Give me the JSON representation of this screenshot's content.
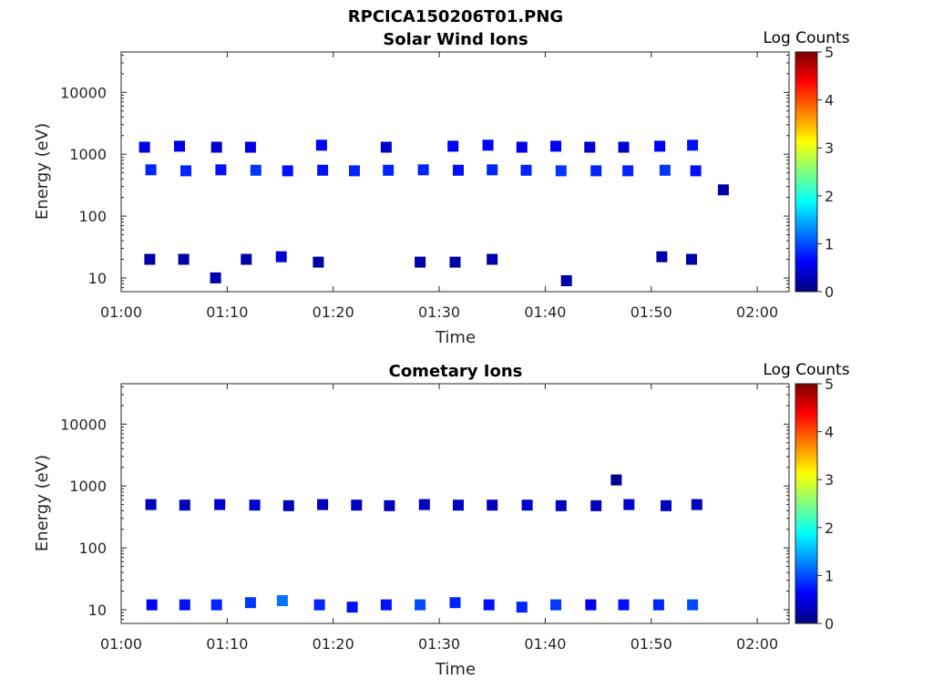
{
  "figure_title": "RPCICA150206T01.PNG",
  "chart_data": [
    {
      "type": "heatmap",
      "title": "Solar Wind Ions",
      "xlabel": "Time",
      "ylabel": "Energy (eV)",
      "x_ticks": [
        "01:00",
        "01:10",
        "01:20",
        "01:30",
        "01:40",
        "01:50",
        "02:00"
      ],
      "xlim_minutes": [
        0,
        63
      ],
      "y_scale": "log",
      "ylim": [
        6,
        45000
      ],
      "y_ticks": [
        "10",
        "100",
        "1000",
        "10000"
      ],
      "colorbar": {
        "label": "Log Counts",
        "ticks": [
          "0",
          "1",
          "2",
          "3",
          "4",
          "5"
        ],
        "range": [
          0,
          5
        ]
      },
      "colormap": "jet",
      "cells": [
        {
          "t": 2.2,
          "e": 1300,
          "v": 0.5
        },
        {
          "t": 5.5,
          "e": 1350,
          "v": 0.5
        },
        {
          "t": 9.0,
          "e": 1300,
          "v": 0.4
        },
        {
          "t": 12.2,
          "e": 1300,
          "v": 0.5
        },
        {
          "t": 18.9,
          "e": 1400,
          "v": 0.6
        },
        {
          "t": 25.0,
          "e": 1300,
          "v": 0.4
        },
        {
          "t": 31.3,
          "e": 1350,
          "v": 0.6
        },
        {
          "t": 34.6,
          "e": 1400,
          "v": 0.6
        },
        {
          "t": 37.8,
          "e": 1300,
          "v": 0.5
        },
        {
          "t": 41.0,
          "e": 1350,
          "v": 0.6
        },
        {
          "t": 44.2,
          "e": 1300,
          "v": 0.4
        },
        {
          "t": 47.4,
          "e": 1300,
          "v": 0.4
        },
        {
          "t": 50.8,
          "e": 1350,
          "v": 0.6
        },
        {
          "t": 53.9,
          "e": 1400,
          "v": 0.7
        },
        {
          "t": 2.8,
          "e": 560,
          "v": 0.8
        },
        {
          "t": 6.1,
          "e": 540,
          "v": 0.8
        },
        {
          "t": 9.4,
          "e": 560,
          "v": 0.7
        },
        {
          "t": 12.7,
          "e": 550,
          "v": 0.9
        },
        {
          "t": 15.7,
          "e": 540,
          "v": 0.7
        },
        {
          "t": 19.0,
          "e": 550,
          "v": 0.7
        },
        {
          "t": 22.0,
          "e": 540,
          "v": 0.8
        },
        {
          "t": 25.2,
          "e": 550,
          "v": 0.8
        },
        {
          "t": 28.5,
          "e": 560,
          "v": 0.8
        },
        {
          "t": 31.8,
          "e": 550,
          "v": 0.7
        },
        {
          "t": 35.0,
          "e": 560,
          "v": 0.8
        },
        {
          "t": 38.2,
          "e": 550,
          "v": 0.8
        },
        {
          "t": 41.5,
          "e": 540,
          "v": 0.9
        },
        {
          "t": 44.8,
          "e": 540,
          "v": 0.8
        },
        {
          "t": 47.8,
          "e": 540,
          "v": 0.8
        },
        {
          "t": 51.3,
          "e": 550,
          "v": 0.9
        },
        {
          "t": 54.2,
          "e": 540,
          "v": 0.7
        },
        {
          "t": 2.7,
          "e": 20,
          "v": 0.2
        },
        {
          "t": 5.9,
          "e": 20,
          "v": 0.2
        },
        {
          "t": 8.9,
          "e": 10,
          "v": 0.2
        },
        {
          "t": 11.8,
          "e": 20,
          "v": 0.2
        },
        {
          "t": 15.1,
          "e": 22,
          "v": 0.4
        },
        {
          "t": 18.6,
          "e": 18,
          "v": 0.2
        },
        {
          "t": 28.2,
          "e": 18,
          "v": 0.2
        },
        {
          "t": 31.5,
          "e": 18,
          "v": 0.2
        },
        {
          "t": 35.0,
          "e": 20,
          "v": 0.2
        },
        {
          "t": 42.0,
          "e": 9,
          "v": 0.2
        },
        {
          "t": 51.0,
          "e": 22,
          "v": 0.2
        },
        {
          "t": 53.8,
          "e": 20,
          "v": 0.2
        },
        {
          "t": 56.8,
          "e": 265,
          "v": 0.2
        }
      ]
    },
    {
      "type": "heatmap",
      "title": "Cometary Ions",
      "xlabel": "Time",
      "ylabel": "Energy (eV)",
      "x_ticks": [
        "01:00",
        "01:10",
        "01:20",
        "01:30",
        "01:40",
        "01:50",
        "02:00"
      ],
      "xlim_minutes": [
        0,
        63
      ],
      "y_scale": "log",
      "ylim": [
        6,
        45000
      ],
      "y_ticks": [
        "10",
        "100",
        "1000",
        "10000"
      ],
      "colorbar": {
        "label": "Log Counts",
        "ticks": [
          "0",
          "1",
          "2",
          "3",
          "4",
          "5"
        ],
        "range": [
          0,
          5
        ]
      },
      "colormap": "jet",
      "cells": [
        {
          "t": 2.8,
          "e": 500,
          "v": 0.3
        },
        {
          "t": 6.0,
          "e": 490,
          "v": 0.3
        },
        {
          "t": 9.3,
          "e": 500,
          "v": 0.4
        },
        {
          "t": 12.6,
          "e": 490,
          "v": 0.4
        },
        {
          "t": 15.8,
          "e": 480,
          "v": 0.3
        },
        {
          "t": 19.0,
          "e": 500,
          "v": 0.3
        },
        {
          "t": 22.2,
          "e": 490,
          "v": 0.3
        },
        {
          "t": 25.3,
          "e": 480,
          "v": 0.3
        },
        {
          "t": 28.6,
          "e": 500,
          "v": 0.3
        },
        {
          "t": 31.8,
          "e": 490,
          "v": 0.3
        },
        {
          "t": 35.0,
          "e": 490,
          "v": 0.3
        },
        {
          "t": 38.3,
          "e": 490,
          "v": 0.4
        },
        {
          "t": 41.5,
          "e": 480,
          "v": 0.3
        },
        {
          "t": 44.8,
          "e": 480,
          "v": 0.3
        },
        {
          "t": 47.9,
          "e": 500,
          "v": 0.4
        },
        {
          "t": 51.4,
          "e": 480,
          "v": 0.3
        },
        {
          "t": 54.3,
          "e": 500,
          "v": 0.3
        },
        {
          "t": 2.9,
          "e": 12,
          "v": 0.6
        },
        {
          "t": 6.0,
          "e": 12,
          "v": 0.7
        },
        {
          "t": 9.0,
          "e": 12,
          "v": 0.8
        },
        {
          "t": 12.2,
          "e": 13,
          "v": 0.9
        },
        {
          "t": 15.2,
          "e": 14,
          "v": 1.2
        },
        {
          "t": 18.7,
          "e": 12,
          "v": 0.8
        },
        {
          "t": 21.8,
          "e": 11,
          "v": 0.7
        },
        {
          "t": 25.0,
          "e": 12,
          "v": 0.7
        },
        {
          "t": 28.2,
          "e": 12,
          "v": 1.0
        },
        {
          "t": 31.5,
          "e": 13,
          "v": 0.8
        },
        {
          "t": 34.7,
          "e": 12,
          "v": 0.7
        },
        {
          "t": 37.8,
          "e": 11,
          "v": 0.8
        },
        {
          "t": 41.0,
          "e": 12,
          "v": 0.9
        },
        {
          "t": 44.3,
          "e": 12,
          "v": 0.6
        },
        {
          "t": 47.4,
          "e": 12,
          "v": 0.7
        },
        {
          "t": 50.7,
          "e": 12,
          "v": 0.8
        },
        {
          "t": 53.9,
          "e": 12,
          "v": 1.0
        },
        {
          "t": 46.7,
          "e": 1250,
          "v": 0.1
        }
      ]
    }
  ]
}
